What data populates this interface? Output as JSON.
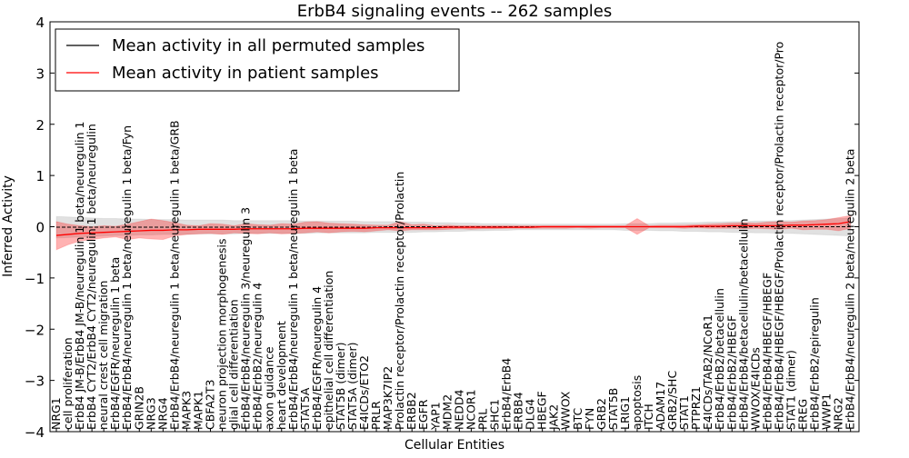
{
  "chart_data": {
    "type": "line",
    "title": "ErbB4 signaling events -- 262 samples",
    "xlabel": "Cellular Entities",
    "ylabel": "Inferred Activity",
    "ylim": [
      -4,
      4
    ],
    "yticks": [
      "4",
      "3",
      "2",
      "1",
      "0",
      "−1",
      "−2",
      "−3",
      "−4"
    ],
    "ytick_values": [
      4,
      3,
      2,
      1,
      0,
      -1,
      -2,
      -3,
      -4
    ],
    "legend": {
      "position": "top-left",
      "items": [
        {
          "label": "Mean activity in all permuted samples",
          "color": "#000000"
        },
        {
          "label": "Mean activity in patient samples",
          "color": "#ff0000"
        }
      ]
    },
    "categories": [
      "NRG1",
      "cell proliferation",
      "ErbB4 JM-B/ErbB4 JM-B/neuregulin 1 beta/neuregulin 1",
      "ErbB4 CYT2/ErbB4 CYT2/neuregulin 1 beta/neuregulin",
      "neural crest cell migration",
      "ErbB4/EGFR/neuregulin 1 beta",
      "ErbB4/ErbB4/neuregulin 1 beta/neuregulin 1 beta/Fyn",
      "GRIN2B",
      "NRG3",
      "NRG4",
      "ErbB4/ErbB4/neuregulin 1 beta/neuregulin 1 beta/GRB",
      "MAPK3",
      "MAPK1",
      "CBFA2T3",
      "neuron projection morphogenesis",
      "glial cell differentiation",
      "ErbB4/ErbB4/neuregulin 3/neuregulin 3",
      "ErbB4/ErbB2/neuregulin 4",
      "axon guidance",
      "heart development",
      "ErbB4/ErbB4/neuregulin 1 beta/neuregulin 1 beta",
      "STAT5A",
      "ErbB4/EGFR/neuregulin 4",
      "epithelial cell differentiation",
      "STAT5B (dimer)",
      "STAT5A (dimer)",
      "E4ICDs/ETO2",
      "PRLR",
      "MAP3K7IP2",
      "Prolactin receptor/Prolactin receptor/Prolactin",
      "ERBB2",
      "EGFR",
      "YAP1",
      "MDM2",
      "NEDD4",
      "NCOR1",
      "PRL",
      "SHC1",
      "ErbB4/ErbB4",
      "ERBB4",
      "DLG4",
      "HBEGF",
      "JAK2",
      "WWOX",
      "BTC",
      "FYN",
      "GRB2",
      "STAT5B",
      "LRIG1",
      "apoptosis",
      "ITCH",
      "ADAM17",
      "GRB2/SHC",
      "STAT1",
      "PTPRZ1",
      "E4ICDs/TAB2/NCoR1",
      "ErbB4/ErbB2/betacellulin",
      "ErbB4/ErbB2/HBEGF",
      "ErbB4/ErbB4/betacellulin/betacellulin",
      "WWOX/E4ICDs",
      "ErbB4/ErbB4/HBEGF/HBEGF",
      "ErbB4/ErbB4/HBEGF/HBEGF/Prolactin receptor/Prolactin receptor/Pro",
      "STAT1 (dimer)",
      "EREG",
      "ErbB4/ErbB2/epiregulin",
      "WWP1",
      "NRG2",
      "ErbB4/ErbB4/neuregulin 2 beta/neuregulin 2 beta"
    ],
    "series": [
      {
        "name": "Mean activity in patient samples",
        "color": "#ff0000",
        "values": [
          -0.17,
          -0.15,
          -0.13,
          -0.12,
          -0.11,
          -0.1,
          -0.09,
          -0.08,
          -0.07,
          -0.07,
          -0.06,
          -0.06,
          -0.05,
          -0.05,
          -0.05,
          -0.05,
          -0.04,
          -0.04,
          -0.04,
          -0.04,
          -0.04,
          -0.03,
          -0.03,
          -0.03,
          -0.03,
          -0.03,
          -0.03,
          -0.02,
          -0.02,
          -0.02,
          -0.02,
          -0.02,
          -0.02,
          -0.01,
          -0.01,
          -0.01,
          -0.01,
          -0.01,
          -0.01,
          -0.01,
          -0.01,
          0,
          0,
          0,
          0,
          0,
          0,
          0,
          0,
          0,
          0,
          0,
          0,
          0,
          0.01,
          0.01,
          0.01,
          0.02,
          0.02,
          0.02,
          0.02,
          0.02,
          0.03,
          0.03,
          0.04,
          0.05,
          0.06,
          0.1
        ],
        "lower": [
          -0.45,
          -0.35,
          -0.28,
          -0.25,
          -0.22,
          -0.2,
          -0.25,
          -0.22,
          -0.24,
          -0.25,
          -0.18,
          -0.15,
          -0.14,
          -0.13,
          -0.15,
          -0.12,
          -0.13,
          -0.14,
          -0.12,
          -0.14,
          -0.13,
          -0.12,
          -0.1,
          -0.12,
          -0.1,
          -0.09,
          -0.1,
          -0.08,
          -0.06,
          -0.08,
          -0.06,
          -0.06,
          -0.06,
          -0.05,
          -0.04,
          -0.05,
          -0.04,
          -0.04,
          -0.03,
          -0.03,
          -0.03,
          -0.03,
          -0.03,
          -0.03,
          -0.02,
          -0.03,
          -0.02,
          -0.02,
          -0.02,
          -0.15,
          -0.02,
          -0.02,
          -0.02,
          -0.03,
          -0.02,
          -0.03,
          -0.03,
          -0.03,
          -0.04,
          -0.03,
          -0.04,
          -0.05,
          -0.03,
          -0.06,
          -0.05,
          -0.05,
          -0.08,
          -0.03
        ],
        "upper": [
          0.1,
          0.05,
          0.02,
          0.0,
          0.02,
          0.01,
          0.05,
          0.1,
          0.15,
          0.12,
          0.08,
          0.03,
          0.02,
          0.06,
          0.05,
          0.02,
          0.06,
          0.04,
          0.03,
          0.06,
          0.05,
          0.09,
          0.1,
          0.07,
          0.06,
          0.05,
          0.04,
          0.03,
          0.03,
          0.1,
          0.04,
          0.05,
          0.02,
          0.03,
          0.02,
          0.02,
          0.02,
          0.02,
          0.02,
          0.02,
          0.02,
          0.02,
          0.02,
          0.02,
          0.02,
          0.02,
          0.02,
          0.02,
          0.02,
          0.16,
          0.02,
          0.03,
          0.03,
          0.03,
          0.04,
          0.05,
          0.06,
          0.07,
          0.08,
          0.07,
          0.09,
          0.1,
          0.09,
          0.11,
          0.12,
          0.14,
          0.18,
          0.22
        ]
      },
      {
        "name": "Mean activity in all permuted samples",
        "color": "#000000",
        "values": [
          -0.01,
          -0.01,
          -0.01,
          -0.01,
          -0.01,
          -0.01,
          -0.01,
          -0.01,
          -0.01,
          -0.01,
          -0.01,
          -0.01,
          -0.01,
          -0.01,
          -0.01,
          -0.01,
          -0.01,
          -0.01,
          -0.01,
          -0.01,
          -0.01,
          -0.01,
          -0.01,
          -0.01,
          -0.01,
          -0.01,
          -0.01,
          -0.01,
          0,
          0,
          0,
          0,
          0,
          0,
          0,
          0,
          0,
          0,
          0,
          0,
          0,
          0,
          0,
          0,
          0,
          0,
          0,
          0,
          0,
          0,
          0,
          0,
          0,
          0,
          0,
          0,
          0,
          0,
          0,
          0,
          0,
          0,
          0,
          0,
          0,
          0,
          0,
          0
        ],
        "lower": [
          -0.22,
          -0.21,
          -0.2,
          -0.19,
          -0.18,
          -0.17,
          -0.17,
          -0.16,
          -0.16,
          -0.15,
          -0.15,
          -0.15,
          -0.14,
          -0.14,
          -0.14,
          -0.14,
          -0.13,
          -0.13,
          -0.13,
          -0.13,
          -0.13,
          -0.13,
          -0.12,
          -0.12,
          -0.12,
          -0.12,
          -0.12,
          -0.11,
          -0.11,
          -0.11,
          -0.11,
          -0.1,
          -0.1,
          -0.09,
          -0.09,
          -0.08,
          -0.08,
          -0.07,
          -0.07,
          -0.06,
          -0.06,
          -0.06,
          -0.06,
          -0.06,
          -0.06,
          -0.06,
          -0.06,
          -0.06,
          -0.07,
          -0.07,
          -0.07,
          -0.08,
          -0.08,
          -0.09,
          -0.09,
          -0.1,
          -0.1,
          -0.11,
          -0.11,
          -0.12,
          -0.12,
          -0.13,
          -0.13,
          -0.14,
          -0.15,
          -0.16,
          -0.17,
          -0.18
        ],
        "upper": [
          0.2,
          0.19,
          0.18,
          0.17,
          0.16,
          0.16,
          0.15,
          0.15,
          0.14,
          0.14,
          0.14,
          0.13,
          0.13,
          0.13,
          0.13,
          0.12,
          0.12,
          0.12,
          0.12,
          0.12,
          0.12,
          0.11,
          0.11,
          0.11,
          0.11,
          0.11,
          0.1,
          0.1,
          0.1,
          0.1,
          0.09,
          0.09,
          0.08,
          0.08,
          0.07,
          0.07,
          0.06,
          0.06,
          0.06,
          0.05,
          0.05,
          0.05,
          0.05,
          0.05,
          0.05,
          0.05,
          0.05,
          0.05,
          0.06,
          0.06,
          0.06,
          0.07,
          0.07,
          0.08,
          0.08,
          0.09,
          0.09,
          0.1,
          0.1,
          0.11,
          0.11,
          0.12,
          0.12,
          0.13,
          0.14,
          0.15,
          0.16,
          0.17
        ]
      }
    ]
  }
}
